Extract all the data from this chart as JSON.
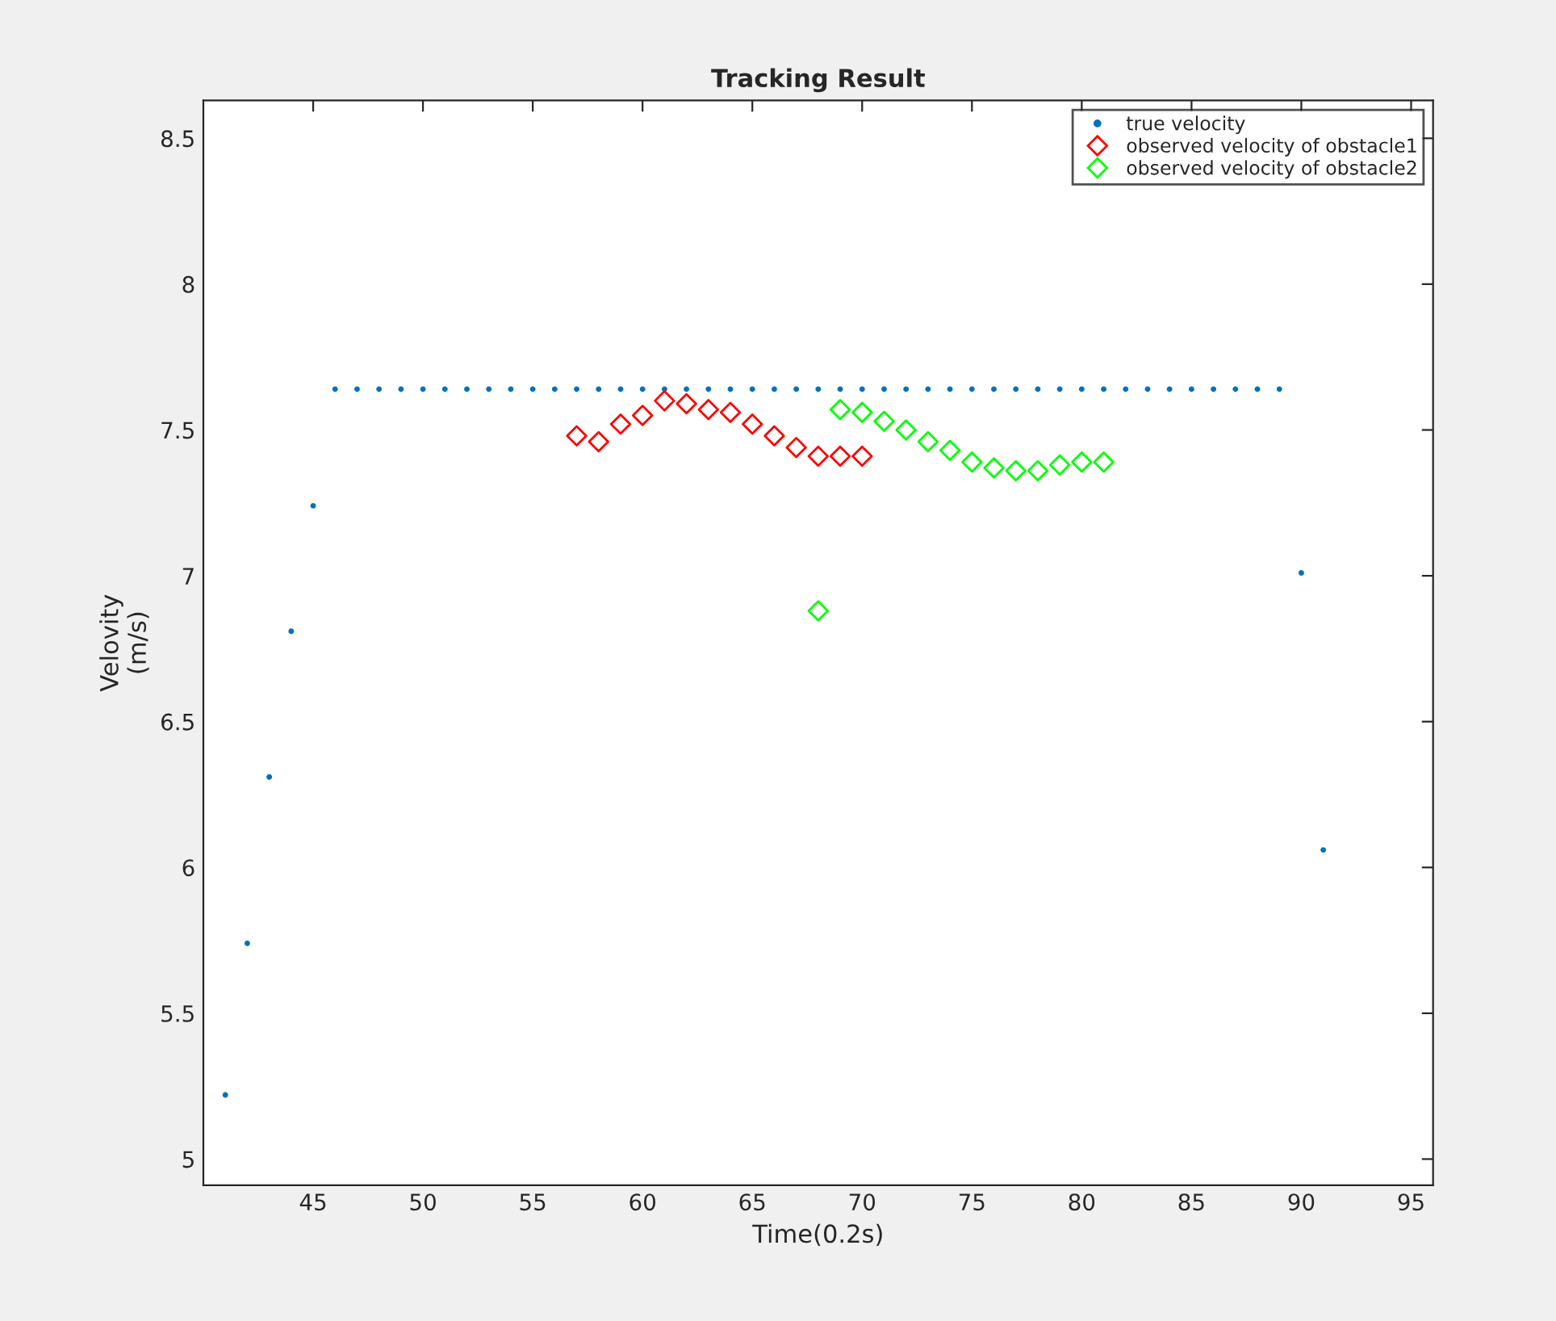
{
  "chart_data": {
    "type": "scatter",
    "title": "Tracking Result",
    "xlabel": "Time(0.2s)",
    "ylabel": "Velovity\n(m/s)",
    "xlim": [
      40,
      96
    ],
    "xticks": [
      45,
      50,
      55,
      60,
      65,
      70,
      75,
      80,
      85,
      90,
      95
    ],
    "ylim": [
      4.91,
      8.63
    ],
    "yticks": [
      5,
      5.5,
      6,
      6.5,
      7,
      7.5,
      8,
      8.5
    ],
    "grid": false,
    "legend": "top right",
    "series": [
      {
        "name": "true velocity",
        "color": "#0072bd",
        "marker": "circle",
        "x": [
          41,
          42,
          43,
          44,
          45,
          46,
          47,
          48,
          49,
          50,
          51,
          52,
          53,
          54,
          55,
          56,
          57,
          58,
          59,
          60,
          61,
          62,
          63,
          64,
          65,
          66,
          67,
          68,
          69,
          70,
          71,
          72,
          73,
          74,
          75,
          76,
          77,
          78,
          79,
          80,
          81,
          82,
          83,
          84,
          85,
          86,
          87,
          88,
          89,
          90,
          91
        ],
        "values": [
          5.22,
          5.74,
          6.31,
          6.81,
          7.24,
          7.64,
          7.64,
          7.64,
          7.64,
          7.64,
          7.64,
          7.64,
          7.64,
          7.64,
          7.64,
          7.64,
          7.64,
          7.64,
          7.64,
          7.64,
          7.64,
          7.64,
          7.64,
          7.64,
          7.64,
          7.64,
          7.64,
          7.64,
          7.64,
          7.64,
          7.64,
          7.64,
          7.64,
          7.64,
          7.64,
          7.64,
          7.64,
          7.64,
          7.64,
          7.64,
          7.64,
          7.64,
          7.64,
          7.64,
          7.64,
          7.64,
          7.64,
          7.64,
          7.64,
          7.01,
          6.06
        ]
      },
      {
        "name": "observed velocity of obstacle1",
        "color": "#ff0000",
        "marker": "diamond",
        "x": [
          57,
          58,
          59,
          60,
          61,
          62,
          63,
          64,
          65,
          66,
          67,
          68,
          69,
          70
        ],
        "values": [
          7.48,
          7.46,
          7.52,
          7.55,
          7.6,
          7.59,
          7.57,
          7.56,
          7.52,
          7.48,
          7.44,
          7.41,
          7.41,
          7.41
        ]
      },
      {
        "name": "observed velocity of obstacle2",
        "color": "#00ff00",
        "marker": "diamond",
        "x": [
          68,
          69,
          70,
          71,
          72,
          73,
          74,
          75,
          76,
          77,
          78,
          79,
          80,
          81
        ],
        "values": [
          6.88,
          7.57,
          7.56,
          7.53,
          7.5,
          7.46,
          7.43,
          7.39,
          7.37,
          7.36,
          7.36,
          7.38,
          7.39,
          7.39
        ]
      }
    ]
  }
}
